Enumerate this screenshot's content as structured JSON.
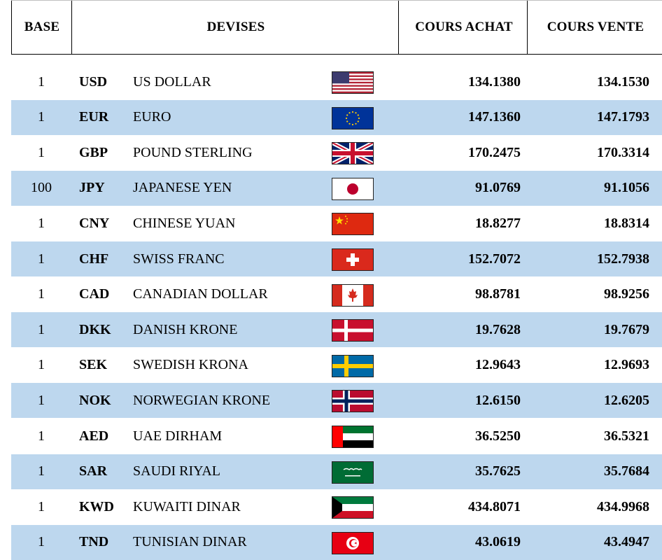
{
  "header": {
    "base": "BASE",
    "devises": "DEVISES",
    "cours_achat": "COURS ACHAT",
    "cours_vente": "COURS VENTE"
  },
  "rows": [
    {
      "base": "1",
      "code": "USD",
      "name": "US DOLLAR",
      "flag_icon": "us-flag-icon",
      "buy": "134.1380",
      "sell": "134.1530"
    },
    {
      "base": "1",
      "code": "EUR",
      "name": "EURO",
      "flag_icon": "eu-flag-icon",
      "buy": "147.1360",
      "sell": "147.1793"
    },
    {
      "base": "1",
      "code": "GBP",
      "name": "POUND STERLING",
      "flag_icon": "uk-flag-icon",
      "buy": "170.2475",
      "sell": "170.3314"
    },
    {
      "base": "100",
      "code": "JPY",
      "name": "JAPANESE YEN",
      "flag_icon": "japan-flag-icon",
      "buy": "91.0769",
      "sell": "91.1056"
    },
    {
      "base": "1",
      "code": "CNY",
      "name": "CHINESE YUAN",
      "flag_icon": "china-flag-icon",
      "buy": "18.8277",
      "sell": "18.8314"
    },
    {
      "base": "1",
      "code": "CHF",
      "name": "SWISS FRANC",
      "flag_icon": "swiss-flag-icon",
      "buy": "152.7072",
      "sell": "152.7938"
    },
    {
      "base": "1",
      "code": "CAD",
      "name": "CANADIAN DOLLAR",
      "flag_icon": "canada-flag-icon",
      "buy": "98.8781",
      "sell": "98.9256"
    },
    {
      "base": "1",
      "code": "DKK",
      "name": "DANISH KRONE",
      "flag_icon": "denmark-flag-icon",
      "buy": "19.7628",
      "sell": "19.7679"
    },
    {
      "base": "1",
      "code": "SEK",
      "name": "SWEDISH KRONA",
      "flag_icon": "sweden-flag-icon",
      "buy": "12.9643",
      "sell": "12.9693"
    },
    {
      "base": "1",
      "code": "NOK",
      "name": "NORWEGIAN KRONE",
      "flag_icon": "norway-flag-icon",
      "buy": "12.6150",
      "sell": "12.6205"
    },
    {
      "base": "1",
      "code": "AED",
      "name": "UAE DIRHAM",
      "flag_icon": "uae-flag-icon",
      "buy": "36.5250",
      "sell": "36.5321"
    },
    {
      "base": "1",
      "code": "SAR",
      "name": "SAUDI RIYAL",
      "flag_icon": "saudi-flag-icon",
      "buy": "35.7625",
      "sell": "35.7684"
    },
    {
      "base": "1",
      "code": "KWD",
      "name": "KUWAITI DINAR",
      "flag_icon": "kuwait-flag-icon",
      "buy": "434.8071",
      "sell": "434.9968"
    },
    {
      "base": "1",
      "code": "TND",
      "name": "TUNISIAN DINAR",
      "flag_icon": "tunisia-flag-icon",
      "buy": "43.0619",
      "sell": "43.4947"
    }
  ],
  "colors": {
    "alt_row": "#bdd7ee",
    "border": "#000000"
  }
}
